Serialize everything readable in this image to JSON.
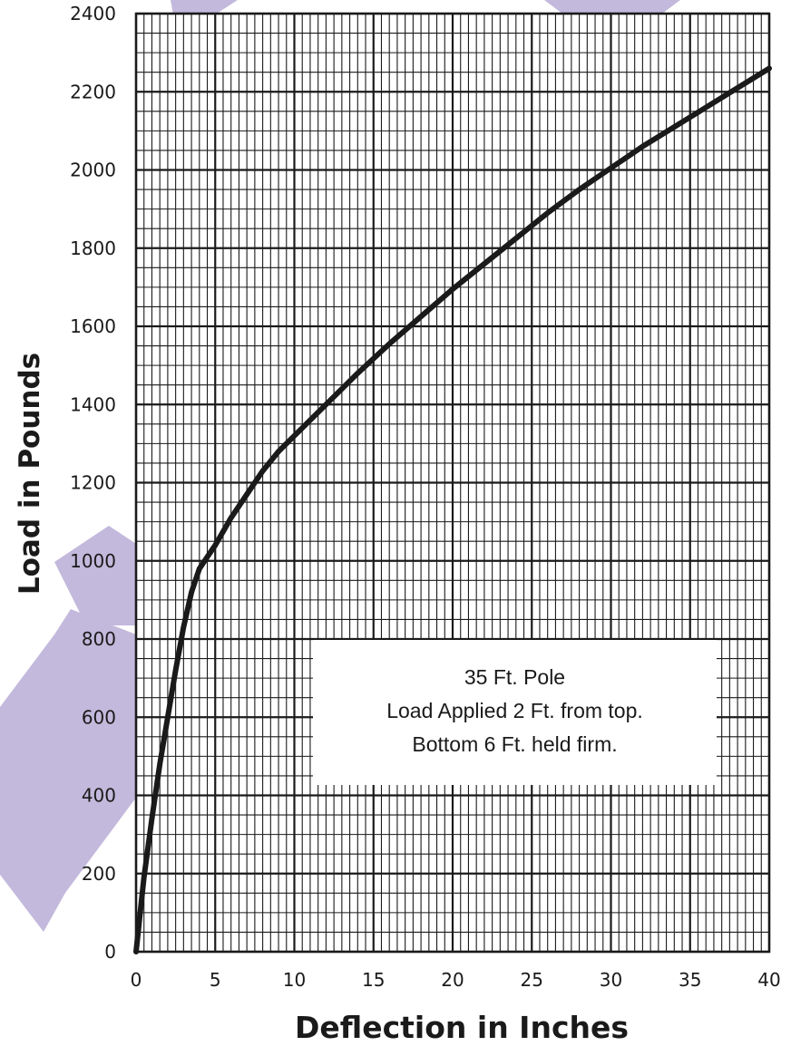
{
  "chart_data": {
    "type": "line",
    "title": "",
    "xlabel": "Deflection in Inches",
    "ylabel": "Load in Pounds",
    "xlim": [
      0,
      40
    ],
    "ylim": [
      0,
      2400
    ],
    "xticks": [
      "0",
      "5",
      "10",
      "15",
      "20",
      "25",
      "30",
      "35",
      "40"
    ],
    "yticks": [
      "0",
      "200",
      "400",
      "600",
      "800",
      "1000",
      "1200",
      "1400",
      "1600",
      "1800",
      "2000",
      "2200",
      "2400"
    ],
    "grid": true,
    "legend": "none",
    "series": [
      {
        "x": [
          0,
          0.5,
          1,
          1.5,
          2,
          2.5,
          3,
          3.5,
          4,
          4.5,
          5,
          6,
          7,
          8,
          9,
          10,
          12,
          14,
          16,
          18,
          20,
          22,
          24,
          26,
          28,
          30,
          32,
          34,
          36,
          38,
          40
        ],
        "y": [
          0,
          190,
          340,
          480,
          600,
          720,
          830,
          920,
          980,
          1010,
          1040,
          1110,
          1170,
          1230,
          1280,
          1320,
          1400,
          1480,
          1555,
          1625,
          1695,
          1760,
          1825,
          1890,
          1950,
          2005,
          2060,
          2110,
          2160,
          2210,
          2260
        ],
        "color": "#1a1a1a"
      }
    ],
    "annotation": {
      "lines": [
        "35 Ft. Pole",
        "Load Applied 2 Ft. from top.",
        "Bottom 6 Ft. held firm."
      ]
    },
    "watermark_color": "#c3b9dc"
  }
}
